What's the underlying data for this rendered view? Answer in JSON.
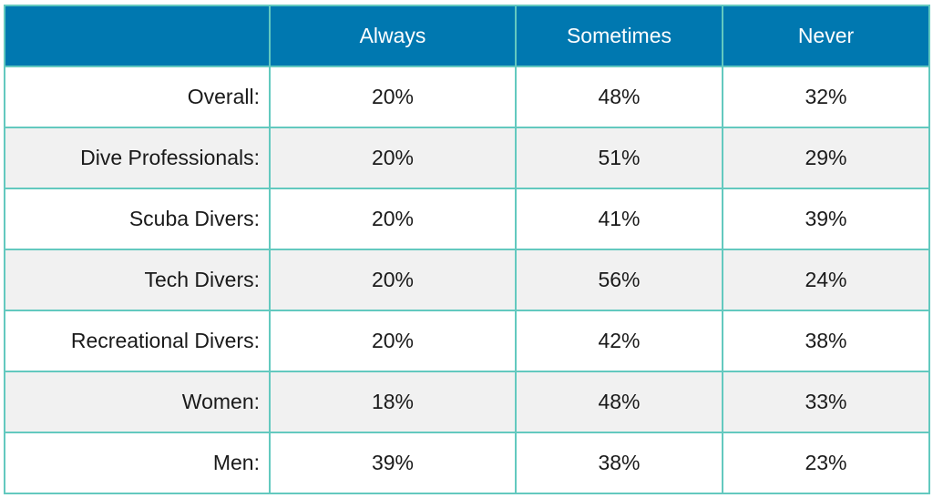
{
  "chart_data": {
    "type": "table",
    "columns": [
      "",
      "Always",
      "Sometimes",
      "Never"
    ],
    "rows": [
      {
        "label": "Overall:",
        "values": [
          "20%",
          "48%",
          "32%"
        ]
      },
      {
        "label": "Dive Professionals:",
        "values": [
          "20%",
          "51%",
          "29%"
        ]
      },
      {
        "label": "Scuba Divers:",
        "values": [
          "20%",
          "41%",
          "39%"
        ]
      },
      {
        "label": "Tech Divers:",
        "values": [
          "20%",
          "56%",
          "24%"
        ]
      },
      {
        "label": "Recreational Divers:",
        "values": [
          "20%",
          "42%",
          "38%"
        ]
      },
      {
        "label": "Women:",
        "values": [
          "18%",
          "48%",
          "33%"
        ]
      },
      {
        "label": "Men:",
        "values": [
          "39%",
          "38%",
          "23%"
        ]
      }
    ]
  },
  "colors": {
    "header_background": "#0078b0",
    "border": "#63c9bf",
    "alt_row": "#f1f1f1"
  }
}
